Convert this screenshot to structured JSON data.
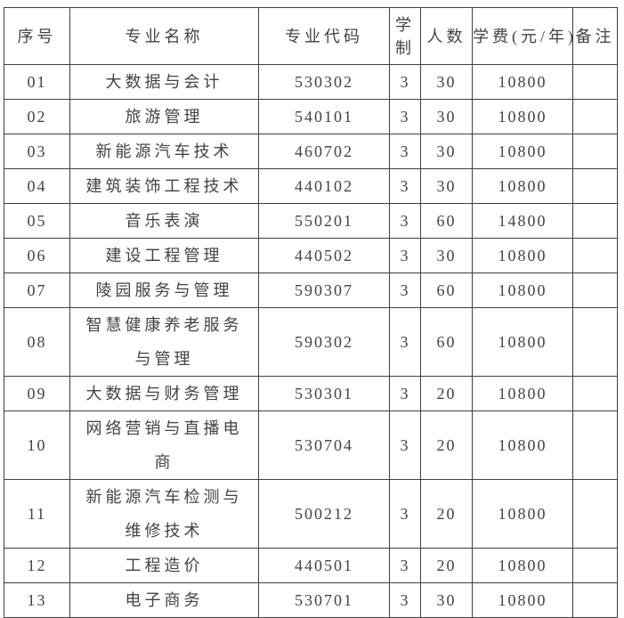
{
  "colors": {
    "background": "#ffffff",
    "border": "#3f3f3f",
    "text": "#434343"
  },
  "table": {
    "headers": [
      {
        "key": "index",
        "label": "序号"
      },
      {
        "key": "name",
        "label": "专业名称"
      },
      {
        "key": "code",
        "label": "专业代码"
      },
      {
        "key": "duration",
        "label": "学制"
      },
      {
        "key": "count",
        "label": "人数"
      },
      {
        "key": "tuition",
        "label": "学费(元/年)"
      },
      {
        "key": "remark",
        "label": "备注"
      }
    ],
    "rows": [
      {
        "index": "01",
        "name": "大数据与会计",
        "code": "530302",
        "duration": "3",
        "count": "30",
        "tuition": "10800",
        "remark": ""
      },
      {
        "index": "02",
        "name": "旅游管理",
        "code": "540101",
        "duration": "3",
        "count": "30",
        "tuition": "10800",
        "remark": ""
      },
      {
        "index": "03",
        "name": "新能源汽车技术",
        "code": "460702",
        "duration": "3",
        "count": "30",
        "tuition": "10800",
        "remark": ""
      },
      {
        "index": "04",
        "name": "建筑装饰工程技术",
        "code": "440102",
        "duration": "3",
        "count": "30",
        "tuition": "10800",
        "remark": ""
      },
      {
        "index": "05",
        "name": "音乐表演",
        "code": "550201",
        "duration": "3",
        "count": "60",
        "tuition": "14800",
        "remark": ""
      },
      {
        "index": "06",
        "name": "建设工程管理",
        "code": "440502",
        "duration": "3",
        "count": "30",
        "tuition": "10800",
        "remark": ""
      },
      {
        "index": "07",
        "name": "陵园服务与管理",
        "code": "590307",
        "duration": "3",
        "count": "60",
        "tuition": "10800",
        "remark": ""
      },
      {
        "index": "08",
        "name": "智慧健康养老服务\n与管理",
        "code": "590302",
        "duration": "3",
        "count": "60",
        "tuition": "10800",
        "remark": ""
      },
      {
        "index": "09",
        "name": "大数据与财务管理",
        "code": "530301",
        "duration": "3",
        "count": "20",
        "tuition": "10800",
        "remark": ""
      },
      {
        "index": "10",
        "name": "网络营销与直播电\n商",
        "code": "530704",
        "duration": "3",
        "count": "20",
        "tuition": "10800",
        "remark": ""
      },
      {
        "index": "11",
        "name": "新能源汽车检测与\n维修技术",
        "code": "500212",
        "duration": "3",
        "count": "20",
        "tuition": "10800",
        "remark": ""
      },
      {
        "index": "12",
        "name": "工程造价",
        "code": "440501",
        "duration": "3",
        "count": "20",
        "tuition": "10800",
        "remark": ""
      },
      {
        "index": "13",
        "name": "电子商务",
        "code": "530701",
        "duration": "3",
        "count": "30",
        "tuition": "10800",
        "remark": ""
      }
    ]
  }
}
